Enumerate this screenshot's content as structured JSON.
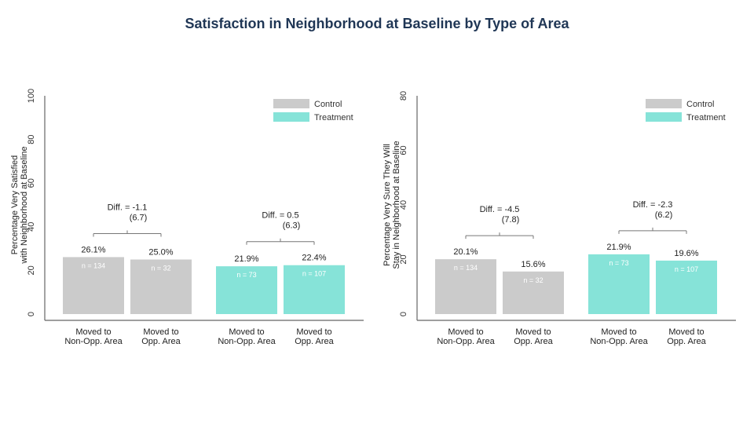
{
  "title": "Satisfaction in Neighborhood at Baseline by Type of Area",
  "colors": {
    "control": "#cbcbcb",
    "treatment": "#86e3d8",
    "axis": "#555555",
    "text": "#222222"
  },
  "chart_data": [
    {
      "type": "bar",
      "ylabel_lines": [
        "Percentage Very Satisfied",
        "with Neighborhood at Baseline"
      ],
      "ylim": [
        0,
        100
      ],
      "yticks": [
        0,
        20,
        40,
        60,
        80,
        100
      ],
      "legend": {
        "position": "top-right",
        "entries": [
          "Control",
          "Treatment"
        ]
      },
      "bars": [
        {
          "category": [
            "Moved to",
            "Non-Opp. Area"
          ],
          "group": "Control",
          "value": 26.1,
          "label": "26.1%",
          "n": "n = 134"
        },
        {
          "category": [
            "Moved to",
            "Opp. Area"
          ],
          "group": "Control",
          "value": 25.0,
          "label": "25.0%",
          "n": "n = 32"
        },
        {
          "category": [
            "Moved to",
            "Non-Opp. Area"
          ],
          "group": "Treatment",
          "value": 21.9,
          "label": "21.9%",
          "n": "n = 73"
        },
        {
          "category": [
            "Moved to",
            "Opp. Area"
          ],
          "group": "Treatment",
          "value": 22.4,
          "label": "22.4%",
          "n": "n = 107"
        }
      ],
      "diffs": [
        {
          "label": "Diff. = -1.1",
          "se": "(6.7)"
        },
        {
          "label": "Diff. = 0.5",
          "se": "(6.3)"
        }
      ]
    },
    {
      "type": "bar",
      "ylabel_lines": [
        "Percentage Very Sure They Will",
        "Stay in Neighborhood at Baseline"
      ],
      "ylim": [
        0,
        80
      ],
      "yticks": [
        0,
        20,
        40,
        60,
        80
      ],
      "legend": {
        "position": "top-right",
        "entries": [
          "Control",
          "Treatment"
        ]
      },
      "bars": [
        {
          "category": [
            "Moved to",
            "Non-Opp. Area"
          ],
          "group": "Control",
          "value": 20.1,
          "label": "20.1%",
          "n": "n = 134"
        },
        {
          "category": [
            "Moved to",
            "Opp. Area"
          ],
          "group": "Control",
          "value": 15.6,
          "label": "15.6%",
          "n": "n = 32"
        },
        {
          "category": [
            "Moved to",
            "Non-Opp. Area"
          ],
          "group": "Treatment",
          "value": 21.9,
          "label": "21.9%",
          "n": "n = 73"
        },
        {
          "category": [
            "Moved to",
            "Opp. Area"
          ],
          "group": "Treatment",
          "value": 19.6,
          "label": "19.6%",
          "n": "n = 107"
        }
      ],
      "diffs": [
        {
          "label": "Diff. = -4.5",
          "se": "(7.8)"
        },
        {
          "label": "Diff. = -2.3",
          "se": "(6.2)"
        }
      ]
    }
  ]
}
